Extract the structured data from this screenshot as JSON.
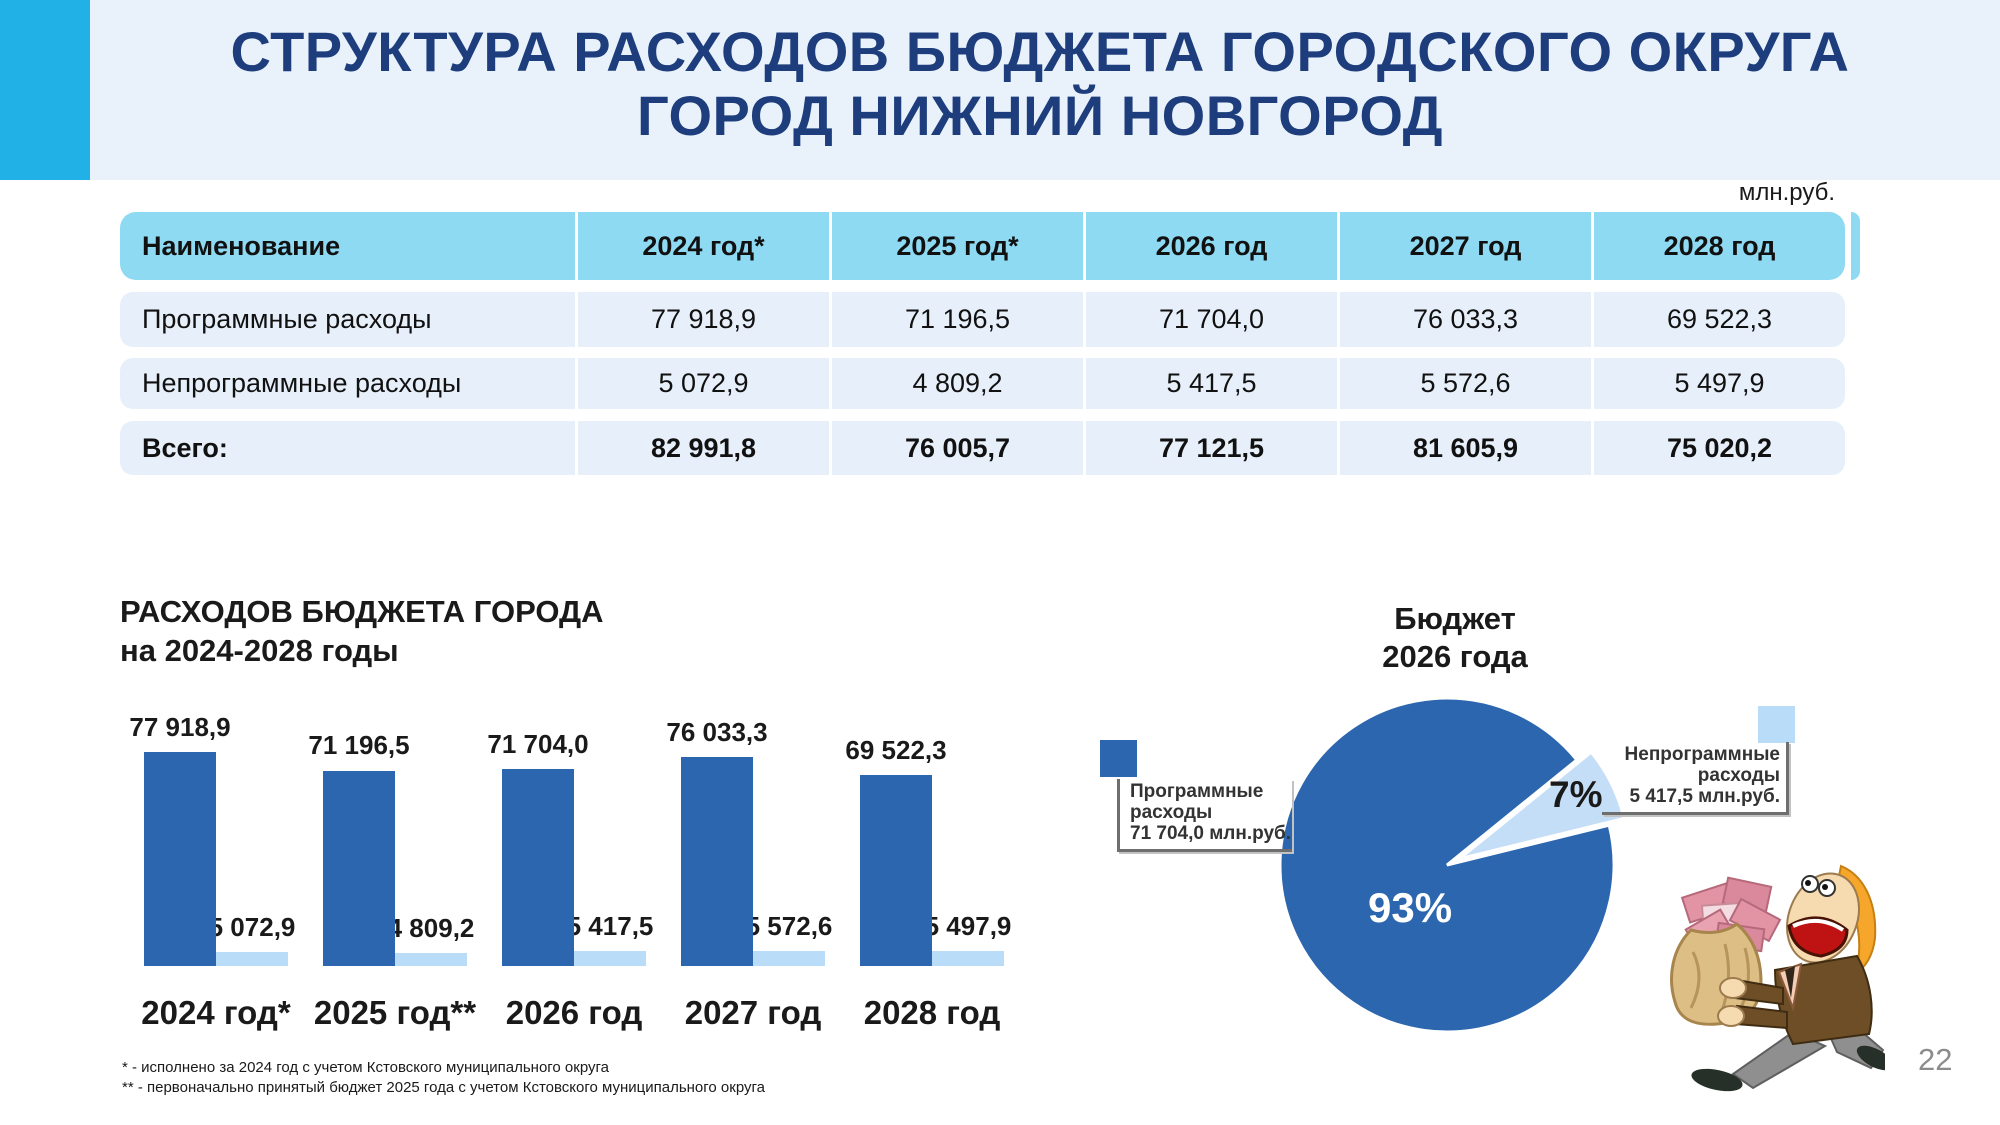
{
  "slide": {
    "title_line1": "СТРУКТУРА РАСХОДОВ БЮДЖЕТА ГОРОДСКОГО ОКРУГА",
    "title_line2": "ГОРОД НИЖНИЙ НОВГОРОД",
    "unit_label": "млн.руб.",
    "page_number": "22",
    "footnote1": "* - исполнено за 2024 год с учетом Кстовского муниципального округа",
    "footnote2": "** - первоначально принятый бюджет 2025 года с учетом Кстовского муниципального округа"
  },
  "colors": {
    "accent_cyan": "#22b1e6",
    "banner_bg": "#e9f2fb",
    "title_navy": "#1d3d7c",
    "table_header": "#8edaf2",
    "table_row": "#e7f0fa",
    "dark_blue": "#2b66ae",
    "light_blue": "#b9dcf8",
    "pie_light": "#c5def8",
    "page_number_gray": "#8c8c8c"
  },
  "table": {
    "headers": [
      "Наименование",
      "2024 год*",
      "2025 год*",
      "2026 год",
      "2027 год",
      "2028 год"
    ],
    "rows": [
      {
        "cells": [
          "Программные расходы",
          "77 918,9",
          "71 196,5",
          "71 704,0",
          "76 033,3",
          "69 522,3"
        ]
      },
      {
        "cells": [
          "Непрограммные расходы",
          "5 072,9",
          "4 809,2",
          "5 417,5",
          "5 572,6",
          "5 497,9"
        ]
      },
      {
        "cells": [
          "Всего:",
          "82 991,8",
          "76 005,7",
          "77 121,5",
          "81 605,9",
          "75 020,2"
        ]
      }
    ]
  },
  "bar_chart": {
    "title_line1": "РАСХОДОВ БЮДЖЕТА ГОРОДА",
    "title_line2": "на 2024-2028 годы",
    "groups": [
      {
        "year": "2024 год*",
        "big_label": "77 918,9",
        "big_value": 77918.9,
        "small_label": "5 072,9",
        "small_value": 5072.9
      },
      {
        "year": "2025 год**",
        "big_label": "71 196,5",
        "big_value": 71196.5,
        "small_label": "4 809,2",
        "small_value": 4809.2
      },
      {
        "year": "2026 год",
        "big_label": "71 704,0",
        "big_value": 71704.0,
        "small_label": "5 417,5",
        "small_value": 5417.5
      },
      {
        "year": "2027 год",
        "big_label": "76 033,3",
        "big_value": 76033.3,
        "small_label": "5 572,6",
        "small_value": 5572.6
      },
      {
        "year": "2028 год",
        "big_label": "69 522,3",
        "big_value": 69522.3,
        "small_label": "5 497,9",
        "small_value": 5497.9
      }
    ]
  },
  "pie_chart": {
    "title_line1": "Бюджет",
    "title_line2": "2026 года",
    "main_percent": "93%",
    "small_percent": "7%",
    "main_value": 93,
    "small_value": 7,
    "legend_main": {
      "label": "Программные расходы",
      "value": "71 704,0 млн.руб."
    },
    "legend_small": {
      "label": "Непрограммные расходы",
      "value": "5 417,5 млн.руб."
    }
  },
  "chart_data": [
    {
      "type": "table",
      "title": "Структура расходов бюджета городского округа город Нижний Новгород",
      "unit": "млн.руб.",
      "columns": [
        "Наименование",
        "2024 год*",
        "2025 год*",
        "2026 год",
        "2027 год",
        "2028 год"
      ],
      "rows": [
        [
          "Программные расходы",
          "77 918,9",
          "71 196,5",
          "71 704,0",
          "76 033,3",
          "69 522,3"
        ],
        [
          "Непрограммные расходы",
          "5 072,9",
          "4 809,2",
          "5 417,5",
          "5 572,6",
          "5 497,9"
        ],
        [
          "Всего:",
          "82 991,8",
          "76 005,7",
          "77 121,5",
          "81 605,9",
          "75 020,2"
        ]
      ]
    },
    {
      "type": "bar",
      "title": "РАСХОДОВ БЮДЖЕТА ГОРОДА на 2024-2028 годы",
      "categories": [
        "2024 год*",
        "2025 год**",
        "2026 год",
        "2027 год",
        "2028 год"
      ],
      "series": [
        {
          "name": "Программные расходы",
          "values": [
            77918.9,
            71196.5,
            71704.0,
            76033.3,
            69522.3
          ]
        },
        {
          "name": "Непрограммные расходы",
          "values": [
            5072.9,
            4809.2,
            5417.5,
            5572.6,
            5497.9
          ]
        }
      ],
      "ylabel": "млн.руб.",
      "data_labels": true,
      "grid": false,
      "legend_position": "none"
    },
    {
      "type": "pie",
      "title": "Бюджет 2026 года",
      "slices": [
        {
          "label": "Программные расходы",
          "percent": 93,
          "value_label": "71 704,0 млн.руб.",
          "color": "#2b66ae"
        },
        {
          "label": "Непрограммные расходы",
          "percent": 7,
          "value_label": "5 417,5 млн.руб.",
          "color": "#c5def8",
          "exploded": true
        }
      ],
      "legend_position": "sides"
    }
  ]
}
